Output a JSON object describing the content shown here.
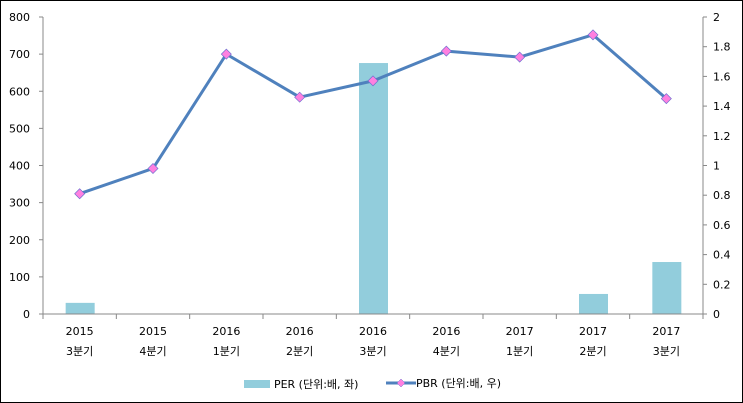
{
  "chart_data": {
    "type": "bar+line",
    "categories": [
      [
        "2015",
        "3분기"
      ],
      [
        "2015",
        "4분기"
      ],
      [
        "2016",
        "1분기"
      ],
      [
        "2016",
        "2분기"
      ],
      [
        "2016",
        "3분기"
      ],
      [
        "2016",
        "4분기"
      ],
      [
        "2017",
        "1분기"
      ],
      [
        "2017",
        "2분기"
      ],
      [
        "2017",
        "3분기"
      ]
    ],
    "series": [
      {
        "name": "PER (단위:배, 좌)",
        "type": "bar",
        "axis": "left",
        "color": "#92cddc",
        "values": [
          30,
          null,
          null,
          null,
          676,
          null,
          null,
          54,
          140
        ]
      },
      {
        "name": "PBR (단위:배, 우)",
        "type": "line",
        "axis": "right",
        "color": "#4f81bd",
        "marker_color": "#ff80e0",
        "values": [
          0.81,
          0.98,
          1.75,
          1.46,
          1.57,
          1.77,
          1.73,
          1.88,
          1.45
        ]
      }
    ],
    "left_axis": {
      "ylim": [
        0,
        800
      ],
      "ticks": [
        "0",
        "100",
        "200",
        "300",
        "400",
        "500",
        "600",
        "700",
        "800"
      ]
    },
    "right_axis": {
      "ylim": [
        0,
        2
      ],
      "ticks": [
        "0",
        "0.2",
        "0.4",
        "0.6",
        "0.8",
        "1",
        "1.2",
        "1.4",
        "1.6",
        "1.8",
        "2"
      ]
    },
    "grid": false,
    "legend": "bottom"
  }
}
